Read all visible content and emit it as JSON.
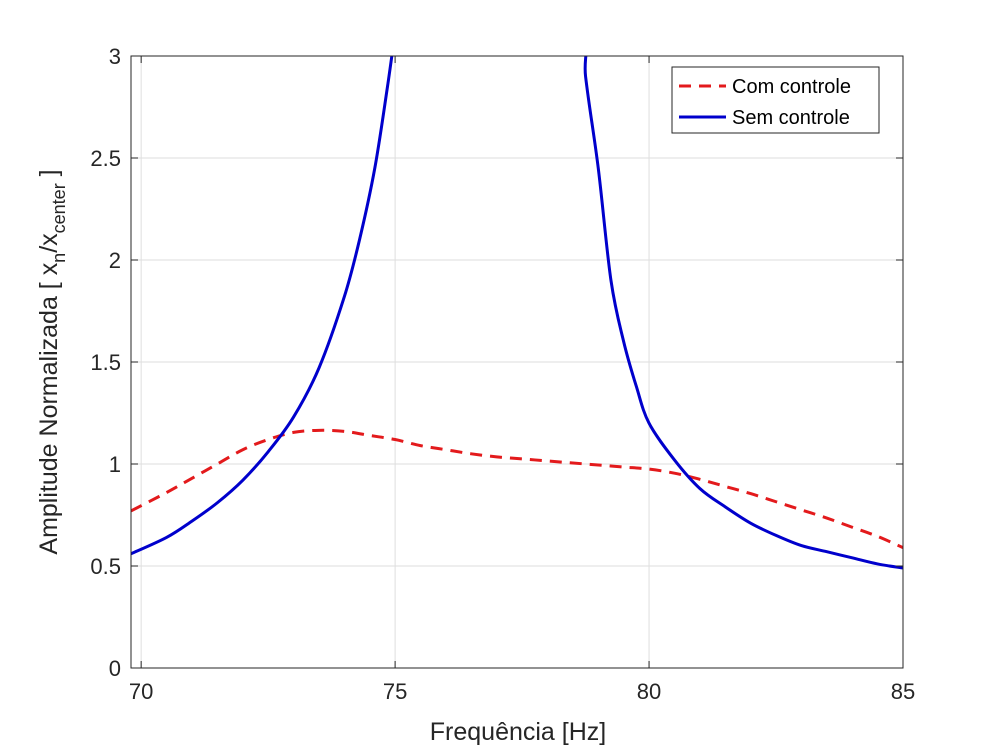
{
  "chart_data": {
    "type": "line",
    "xlabel": "Frequência [Hz]",
    "ylabel": {
      "prefix": "Amplitude Normalizada [ x",
      "sub1": "n",
      "mid": "/x",
      "sub2": "center",
      "suffix": " ]"
    },
    "xlim": [
      69.8,
      85
    ],
    "ylim": [
      0,
      3
    ],
    "xticks": [
      70,
      75,
      80,
      85
    ],
    "xtick_labels": [
      "70",
      "75",
      "80",
      "85"
    ],
    "yticks": [
      0,
      0.5,
      1,
      1.5,
      2,
      2.5,
      3
    ],
    "ytick_labels": [
      "0",
      "0.5",
      "1",
      "1.5",
      "2",
      "2.5",
      "3"
    ],
    "grid": true,
    "legend_position": "top-right",
    "series": [
      {
        "name": "Com controle",
        "color": "#e31a1c",
        "style": "dashed",
        "x": [
          69.8,
          70.5,
          71,
          71.5,
          72,
          72.5,
          73,
          73.5,
          74,
          74.5,
          75,
          75.5,
          76,
          76.5,
          77,
          77.5,
          78,
          78.5,
          79,
          79.5,
          80,
          80.5,
          81,
          81.5,
          82,
          82.5,
          83,
          83.5,
          84,
          84.5,
          85
        ],
        "y": [
          0.77,
          0.86,
          0.93,
          1.0,
          1.07,
          1.12,
          1.155,
          1.165,
          1.16,
          1.14,
          1.12,
          1.09,
          1.07,
          1.05,
          1.035,
          1.025,
          1.015,
          1.005,
          0.995,
          0.985,
          0.975,
          0.955,
          0.925,
          0.89,
          0.855,
          0.815,
          0.775,
          0.735,
          0.69,
          0.645,
          0.59
        ]
      },
      {
        "name": "Sem controle",
        "color": "#0000cc",
        "style": "solid",
        "x": [
          69.8,
          70.5,
          71,
          71.5,
          72,
          72.5,
          73,
          73.5,
          74,
          74.3,
          74.6,
          74.85,
          75.05,
          75.2,
          78.55,
          78.75,
          79,
          79.25,
          79.5,
          79.75,
          80,
          80.5,
          81,
          81.5,
          82,
          82.5,
          83,
          83.5,
          84,
          84.5,
          85
        ],
        "y": [
          0.56,
          0.64,
          0.72,
          0.81,
          0.92,
          1.06,
          1.23,
          1.47,
          1.82,
          2.1,
          2.45,
          2.85,
          3.2,
          3.4,
          3.4,
          2.9,
          2.45,
          1.9,
          1.6,
          1.38,
          1.2,
          1.02,
          0.88,
          0.79,
          0.71,
          0.65,
          0.6,
          0.57,
          0.54,
          0.51,
          0.49
        ]
      }
    ]
  }
}
